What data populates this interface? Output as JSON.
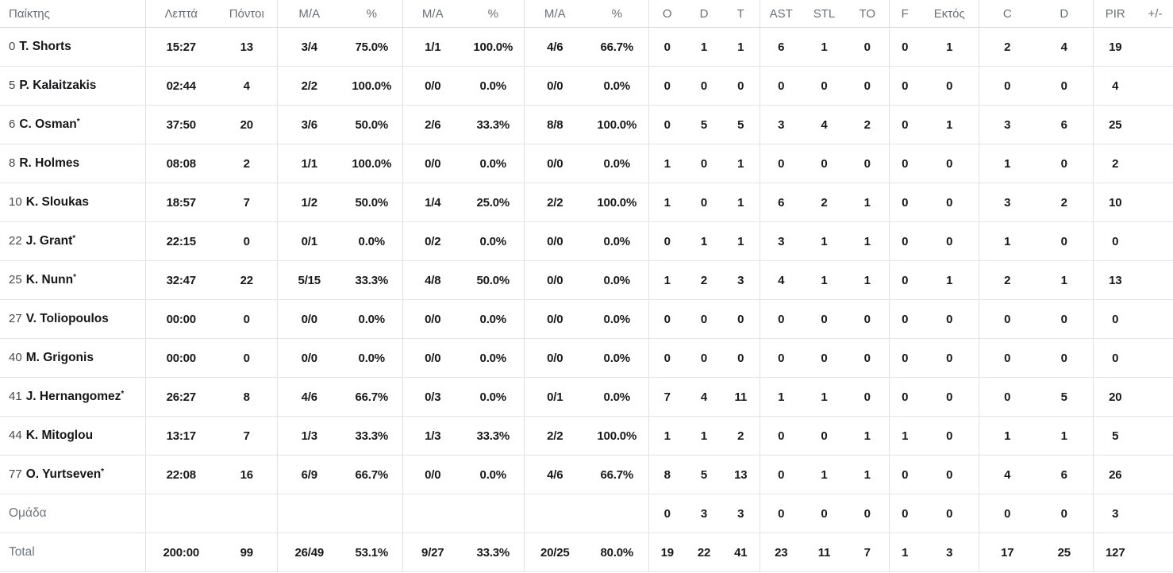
{
  "table": {
    "starter_mark": "*",
    "columns": [
      {
        "key": "player",
        "label": "Παίκτης",
        "group_end": true
      },
      {
        "key": "min",
        "label": "Λεπτά"
      },
      {
        "key": "pts",
        "label": "Πόντοι",
        "group_end": true
      },
      {
        "key": "fg2_ma",
        "label": "Μ/Α"
      },
      {
        "key": "fg2_pct",
        "label": "%",
        "group_end": true
      },
      {
        "key": "fg3_ma",
        "label": "Μ/Α"
      },
      {
        "key": "fg3_pct",
        "label": "%",
        "group_end": true
      },
      {
        "key": "ft_ma",
        "label": "Μ/Α"
      },
      {
        "key": "ft_pct",
        "label": "%",
        "group_end": true
      },
      {
        "key": "reb_o",
        "label": "O"
      },
      {
        "key": "reb_d",
        "label": "D"
      },
      {
        "key": "reb_t",
        "label": "T",
        "group_end": true
      },
      {
        "key": "ast",
        "label": "AST"
      },
      {
        "key": "stl",
        "label": "STL"
      },
      {
        "key": "to",
        "label": "TO",
        "group_end": true
      },
      {
        "key": "f",
        "label": "F"
      },
      {
        "key": "ektos",
        "label": "Εκτός",
        "group_end": true
      },
      {
        "key": "c",
        "label": "C"
      },
      {
        "key": "d2",
        "label": "D",
        "group_end": true
      },
      {
        "key": "pir",
        "label": "PIR"
      },
      {
        "key": "plusminus",
        "label": "+/-"
      }
    ],
    "rows": [
      {
        "type": "player",
        "num": "0",
        "name": "T. Shorts",
        "starter": false,
        "stats": {
          "min": "15:27",
          "pts": "13",
          "fg2_ma": "3/4",
          "fg2_pct": "75.0%",
          "fg3_ma": "1/1",
          "fg3_pct": "100.0%",
          "ft_ma": "4/6",
          "ft_pct": "66.7%",
          "reb_o": "0",
          "reb_d": "1",
          "reb_t": "1",
          "ast": "6",
          "stl": "1",
          "to": "0",
          "f": "0",
          "ektos": "1",
          "c": "2",
          "d2": "4",
          "pir": "19",
          "plusminus": ""
        }
      },
      {
        "type": "player",
        "num": "5",
        "name": "P. Kalaitzakis",
        "starter": false,
        "stats": {
          "min": "02:44",
          "pts": "4",
          "fg2_ma": "2/2",
          "fg2_pct": "100.0%",
          "fg3_ma": "0/0",
          "fg3_pct": "0.0%",
          "ft_ma": "0/0",
          "ft_pct": "0.0%",
          "reb_o": "0",
          "reb_d": "0",
          "reb_t": "0",
          "ast": "0",
          "stl": "0",
          "to": "0",
          "f": "0",
          "ektos": "0",
          "c": "0",
          "d2": "0",
          "pir": "4",
          "plusminus": ""
        }
      },
      {
        "type": "player",
        "num": "6",
        "name": "C. Osman",
        "starter": true,
        "stats": {
          "min": "37:50",
          "pts": "20",
          "fg2_ma": "3/6",
          "fg2_pct": "50.0%",
          "fg3_ma": "2/6",
          "fg3_pct": "33.3%",
          "ft_ma": "8/8",
          "ft_pct": "100.0%",
          "reb_o": "0",
          "reb_d": "5",
          "reb_t": "5",
          "ast": "3",
          "stl": "4",
          "to": "2",
          "f": "0",
          "ektos": "1",
          "c": "3",
          "d2": "6",
          "pir": "25",
          "plusminus": ""
        }
      },
      {
        "type": "player",
        "num": "8",
        "name": "R. Holmes",
        "starter": false,
        "stats": {
          "min": "08:08",
          "pts": "2",
          "fg2_ma": "1/1",
          "fg2_pct": "100.0%",
          "fg3_ma": "0/0",
          "fg3_pct": "0.0%",
          "ft_ma": "0/0",
          "ft_pct": "0.0%",
          "reb_o": "1",
          "reb_d": "0",
          "reb_t": "1",
          "ast": "0",
          "stl": "0",
          "to": "0",
          "f": "0",
          "ektos": "0",
          "c": "1",
          "d2": "0",
          "pir": "2",
          "plusminus": ""
        }
      },
      {
        "type": "player",
        "num": "10",
        "name": "K. Sloukas",
        "starter": false,
        "stats": {
          "min": "18:57",
          "pts": "7",
          "fg2_ma": "1/2",
          "fg2_pct": "50.0%",
          "fg3_ma": "1/4",
          "fg3_pct": "25.0%",
          "ft_ma": "2/2",
          "ft_pct": "100.0%",
          "reb_o": "1",
          "reb_d": "0",
          "reb_t": "1",
          "ast": "6",
          "stl": "2",
          "to": "1",
          "f": "0",
          "ektos": "0",
          "c": "3",
          "d2": "2",
          "pir": "10",
          "plusminus": ""
        }
      },
      {
        "type": "player",
        "num": "22",
        "name": "J. Grant",
        "starter": true,
        "stats": {
          "min": "22:15",
          "pts": "0",
          "fg2_ma": "0/1",
          "fg2_pct": "0.0%",
          "fg3_ma": "0/2",
          "fg3_pct": "0.0%",
          "ft_ma": "0/0",
          "ft_pct": "0.0%",
          "reb_o": "0",
          "reb_d": "1",
          "reb_t": "1",
          "ast": "3",
          "stl": "1",
          "to": "1",
          "f": "0",
          "ektos": "0",
          "c": "1",
          "d2": "0",
          "pir": "0",
          "plusminus": ""
        }
      },
      {
        "type": "player",
        "num": "25",
        "name": "K. Nunn",
        "starter": true,
        "stats": {
          "min": "32:47",
          "pts": "22",
          "fg2_ma": "5/15",
          "fg2_pct": "33.3%",
          "fg3_ma": "4/8",
          "fg3_pct": "50.0%",
          "ft_ma": "0/0",
          "ft_pct": "0.0%",
          "reb_o": "1",
          "reb_d": "2",
          "reb_t": "3",
          "ast": "4",
          "stl": "1",
          "to": "1",
          "f": "0",
          "ektos": "1",
          "c": "2",
          "d2": "1",
          "pir": "13",
          "plusminus": ""
        }
      },
      {
        "type": "player",
        "num": "27",
        "name": "V. Toliopoulos",
        "starter": false,
        "stats": {
          "min": "00:00",
          "pts": "0",
          "fg2_ma": "0/0",
          "fg2_pct": "0.0%",
          "fg3_ma": "0/0",
          "fg3_pct": "0.0%",
          "ft_ma": "0/0",
          "ft_pct": "0.0%",
          "reb_o": "0",
          "reb_d": "0",
          "reb_t": "0",
          "ast": "0",
          "stl": "0",
          "to": "0",
          "f": "0",
          "ektos": "0",
          "c": "0",
          "d2": "0",
          "pir": "0",
          "plusminus": ""
        }
      },
      {
        "type": "player",
        "num": "40",
        "name": "M. Grigonis",
        "starter": false,
        "stats": {
          "min": "00:00",
          "pts": "0",
          "fg2_ma": "0/0",
          "fg2_pct": "0.0%",
          "fg3_ma": "0/0",
          "fg3_pct": "0.0%",
          "ft_ma": "0/0",
          "ft_pct": "0.0%",
          "reb_o": "0",
          "reb_d": "0",
          "reb_t": "0",
          "ast": "0",
          "stl": "0",
          "to": "0",
          "f": "0",
          "ektos": "0",
          "c": "0",
          "d2": "0",
          "pir": "0",
          "plusminus": ""
        }
      },
      {
        "type": "player",
        "num": "41",
        "name": "J. Hernangomez",
        "starter": true,
        "stats": {
          "min": "26:27",
          "pts": "8",
          "fg2_ma": "4/6",
          "fg2_pct": "66.7%",
          "fg3_ma": "0/3",
          "fg3_pct": "0.0%",
          "ft_ma": "0/1",
          "ft_pct": "0.0%",
          "reb_o": "7",
          "reb_d": "4",
          "reb_t": "11",
          "ast": "1",
          "stl": "1",
          "to": "0",
          "f": "0",
          "ektos": "0",
          "c": "0",
          "d2": "5",
          "pir": "20",
          "plusminus": ""
        }
      },
      {
        "type": "player",
        "num": "44",
        "name": "K. Mitoglou",
        "starter": false,
        "stats": {
          "min": "13:17",
          "pts": "7",
          "fg2_ma": "1/3",
          "fg2_pct": "33.3%",
          "fg3_ma": "1/3",
          "fg3_pct": "33.3%",
          "ft_ma": "2/2",
          "ft_pct": "100.0%",
          "reb_o": "1",
          "reb_d": "1",
          "reb_t": "2",
          "ast": "0",
          "stl": "0",
          "to": "1",
          "f": "1",
          "ektos": "0",
          "c": "1",
          "d2": "1",
          "pir": "5",
          "plusminus": ""
        }
      },
      {
        "type": "player",
        "num": "77",
        "name": "O. Yurtseven",
        "starter": true,
        "stats": {
          "min": "22:08",
          "pts": "16",
          "fg2_ma": "6/9",
          "fg2_pct": "66.7%",
          "fg3_ma": "0/0",
          "fg3_pct": "0.0%",
          "ft_ma": "4/6",
          "ft_pct": "66.7%",
          "reb_o": "8",
          "reb_d": "5",
          "reb_t": "13",
          "ast": "0",
          "stl": "1",
          "to": "1",
          "f": "0",
          "ektos": "0",
          "c": "4",
          "d2": "6",
          "pir": "26",
          "plusminus": ""
        }
      },
      {
        "type": "team",
        "label": "Ομάδα",
        "stats": {
          "min": "",
          "pts": "",
          "fg2_ma": "",
          "fg2_pct": "",
          "fg3_ma": "",
          "fg3_pct": "",
          "ft_ma": "",
          "ft_pct": "",
          "reb_o": "0",
          "reb_d": "3",
          "reb_t": "3",
          "ast": "0",
          "stl": "0",
          "to": "0",
          "f": "0",
          "ektos": "0",
          "c": "0",
          "d2": "0",
          "pir": "3",
          "plusminus": ""
        }
      },
      {
        "type": "total",
        "label": "Total",
        "stats": {
          "min": "200:00",
          "pts": "99",
          "fg2_ma": "26/49",
          "fg2_pct": "53.1%",
          "fg3_ma": "9/27",
          "fg3_pct": "33.3%",
          "ft_ma": "20/25",
          "ft_pct": "80.0%",
          "reb_o": "19",
          "reb_d": "22",
          "reb_t": "41",
          "ast": "23",
          "stl": "11",
          "to": "7",
          "f": "1",
          "ektos": "3",
          "c": "17",
          "d2": "25",
          "pir": "127",
          "plusminus": ""
        }
      }
    ]
  }
}
